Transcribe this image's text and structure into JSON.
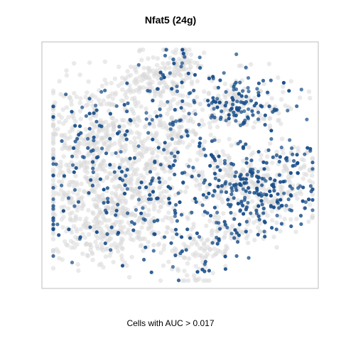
{
  "chart_data": {
    "type": "scatter",
    "title": "Nfat5 (24g)",
    "xlabel": "Cells with AUC > 0.017",
    "ylabel": "",
    "grid": false,
    "legend": "none",
    "series": [
      {
        "name": "",
        "role": "background",
        "color": "#d9d9d9"
      },
      {
        "name": "",
        "role": "highlight",
        "color": "#1a4f8a"
      }
    ]
  }
}
